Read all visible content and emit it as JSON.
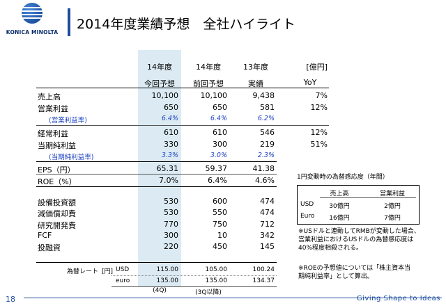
{
  "logo": {
    "text": "KONICA MINOLTA"
  },
  "title": "2014年度業績予想　全社ハイライト",
  "header": {
    "col1_year": "14年度",
    "col2_year": "14年度",
    "col3_year": "13年度",
    "unit": "[億円]",
    "col1": "今回予想",
    "col2": "前回予想",
    "col3": "実績",
    "col4": "YoY"
  },
  "rows": [
    {
      "label": "売上高",
      "v1": "10,100",
      "v2": "10,100",
      "v3": "9,438",
      "v4": "7%"
    },
    {
      "label": "営業利益",
      "v1": "650",
      "v2": "650",
      "v3": "581",
      "v4": "12%"
    },
    {
      "label": "(営業利益率)",
      "v1": "6.4%",
      "v2": "6.4%",
      "v3": "6.2%",
      "v4": ""
    },
    {
      "label": "経常利益",
      "v1": "610",
      "v2": "610",
      "v3": "546",
      "v4": "12%"
    },
    {
      "label": "当期純利益",
      "v1": "330",
      "v2": "300",
      "v3": "219",
      "v4": "51%"
    },
    {
      "label": "(当期純利益率)",
      "v1": "3.3%",
      "v2": "3.0%",
      "v3": "2.3%",
      "v4": ""
    },
    {
      "label": "EPS（円）",
      "v1": "65.31",
      "v2": "59.37",
      "v3": "41.38",
      "v4": ""
    },
    {
      "label": "ROE（%）",
      "v1": "7.0%",
      "v2": "6.4%",
      "v3": "4.6%",
      "v4": ""
    },
    {
      "label": "設備投資額",
      "v1": "530",
      "v2": "600",
      "v3": "474",
      "v4": ""
    },
    {
      "label": "減価償却費",
      "v1": "530",
      "v2": "550",
      "v3": "474",
      "v4": ""
    },
    {
      "label": "研究開発費",
      "v1": "770",
      "v2": "750",
      "v3": "712",
      "v4": ""
    },
    {
      "label": "FCF",
      "v1": "300",
      "v2": "10",
      "v3": "342",
      "v4": ""
    },
    {
      "label": "投融資",
      "v1": "220",
      "v2": "450",
      "v3": "145",
      "v4": ""
    }
  ],
  "fx": {
    "label": "為替レート",
    "unit": "[円]",
    "usd_label": "USD",
    "usd_v1": "115.00",
    "usd_v2": "105.00",
    "usd_v3": "100.24",
    "euro_label": "euro",
    "euro_v1": "135.00",
    "euro_v2": "135.00",
    "euro_v3": "134.37",
    "note1": "(4Q)",
    "note2": "(3Q以降)"
  },
  "sensitivity": {
    "title": "1円変動時の為替感応度（年間）",
    "h1": "売上高",
    "h2": "営業利益",
    "usd_label": "USD",
    "usd_sales": "30億円",
    "usd_op": "2億円",
    "euro_label": "Euro",
    "euro_sales": "16億円",
    "euro_op": "7億円"
  },
  "notes": {
    "n1_l1": "※USドルと連動してRMBが変動した場合、",
    "n1_l2": "営業利益におけるUSドルの為替感応度は",
    "n1_l3": "40%程度相殺される。",
    "n2_l1": "※ROEの予想値については「株主資本当",
    "n2_l2": "期純利益率」として算出。"
  },
  "footer": {
    "page": "18",
    "tagline": "Giving Shape to Ideas"
  }
}
